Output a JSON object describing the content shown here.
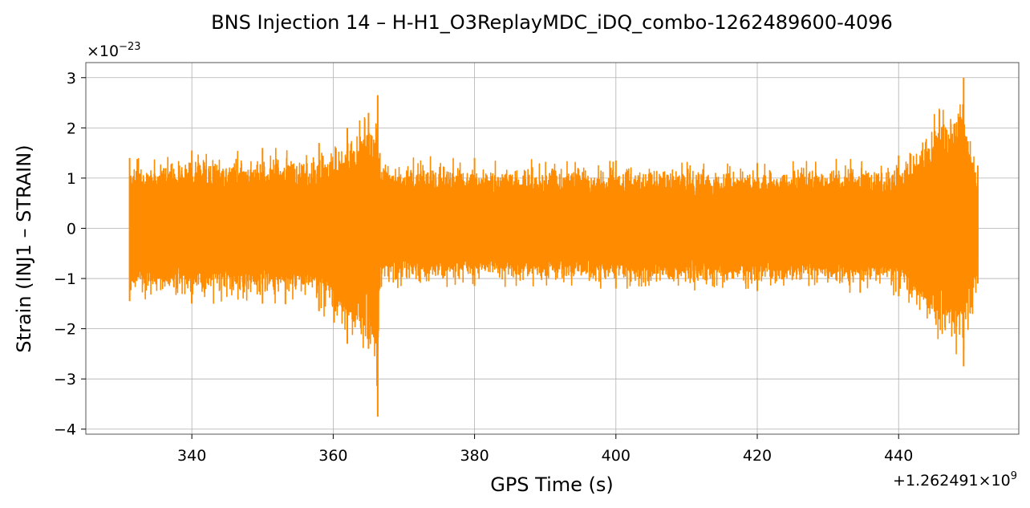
{
  "chart_data": {
    "type": "line",
    "title": "BNS Injection 14 – H-H1_O3ReplayMDC_iDQ_combo-1262489600-4096",
    "xlabel": "GPS Time (s)",
    "ylabel": "Strain (INJ1 – STRAIN)",
    "x_offset_label": "+1.262491×10",
    "x_offset_exponent": "9",
    "y_multiplier_label": "×10",
    "y_multiplier_exponent": "−23",
    "xlim": [
      325,
      457
    ],
    "ylim": [
      -4.1,
      3.3
    ],
    "grid": true,
    "x_ticks": [
      340,
      360,
      380,
      400,
      420,
      440
    ],
    "x_tick_labels": [
      "340",
      "360",
      "380",
      "400",
      "420",
      "440"
    ],
    "y_ticks": [
      -4,
      -3,
      -2,
      -1,
      0,
      1,
      2,
      3
    ],
    "y_tick_labels": [
      "−4",
      "−3",
      "−2",
      "−1",
      "0",
      "1",
      "2",
      "3"
    ],
    "series": [
      {
        "color": "#ff8c00",
        "x_start": 331.2,
        "x_end": 451.2,
        "envelope": [
          {
            "x": 331.2,
            "upper": 1.4,
            "lower": -1.45
          },
          {
            "x": 340,
            "upper": 1.55,
            "lower": -1.5
          },
          {
            "x": 350,
            "upper": 1.6,
            "lower": -1.5
          },
          {
            "x": 358,
            "upper": 1.7,
            "lower": -1.65
          },
          {
            "x": 362,
            "upper": 2.0,
            "lower": -2.3
          },
          {
            "x": 365,
            "upper": 2.3,
            "lower": -2.4
          },
          {
            "x": 366.3,
            "upper": 2.65,
            "lower": -3.75
          },
          {
            "x": 366.6,
            "upper": 1.5,
            "lower": -1.2
          },
          {
            "x": 380,
            "upper": 1.4,
            "lower": -1.15
          },
          {
            "x": 400,
            "upper": 1.35,
            "lower": -1.2
          },
          {
            "x": 420,
            "upper": 1.3,
            "lower": -1.25
          },
          {
            "x": 440,
            "upper": 1.45,
            "lower": -1.35
          },
          {
            "x": 449.2,
            "upper": 3.0,
            "lower": -2.75
          },
          {
            "x": 451.2,
            "upper": 1.25,
            "lower": -1.1
          }
        ]
      }
    ]
  }
}
